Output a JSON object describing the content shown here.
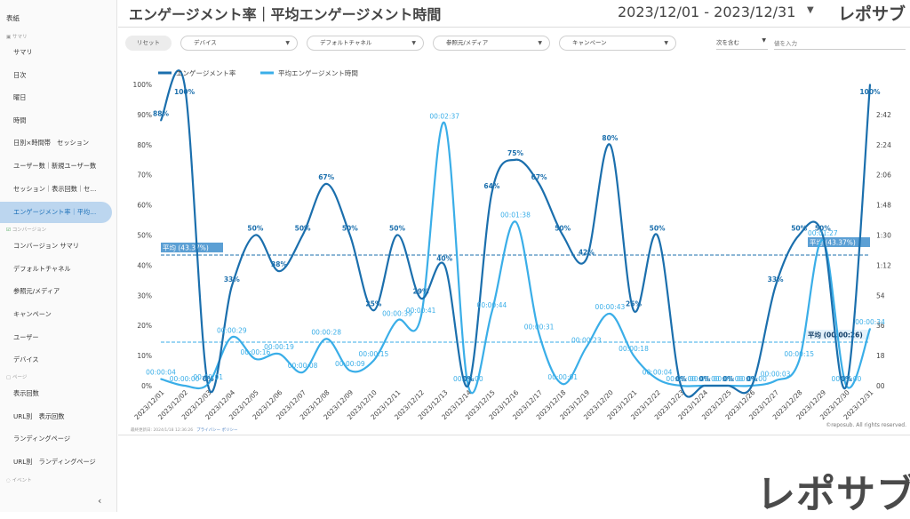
{
  "sidebar": {
    "top_label": "表紙",
    "sections": {
      "summary": "サマリ",
      "conversion": "コンバージョン",
      "page": "ページ",
      "event": "イベント"
    },
    "items": [
      "サマリ",
      "日次",
      "曜日",
      "時間",
      "日別×時間帯　セッション",
      "ユーザー数｜新規ユーザー数",
      "セッション｜表示回数｜セ…",
      "エンゲージメント率｜平均…",
      "コンバージョン サマリ",
      "デフォルトチャネル",
      "参照元/メディア",
      "キャンペーン",
      "ユーザー",
      "デバイス",
      "表示回数",
      "URL別　表示回数",
      "ランディングページ",
      "URL別　ランディングページ"
    ],
    "active_index": 7,
    "collapse_icon": "‹"
  },
  "header": {
    "title": "エンゲージメント率｜平均エンゲージメント時間",
    "date_range": "2023/12/01 - 2023/12/31",
    "logo": "レポサブ"
  },
  "filters": {
    "reset": "リセット",
    "device": "デバイス",
    "channel": "デフォルトチャネル",
    "source": "参照元/メディア",
    "campaign": "キャンペーン",
    "match": "次を含む",
    "value_placeholder": "値を入力"
  },
  "footer": {
    "updated": "最終更新日: 2024/1/18 12:36:26",
    "privacy": "プライバシー ポリシー",
    "copyright": "©reposub. All rights reserved."
  },
  "watermark": "レポサブ",
  "colors": {
    "rate": "#1b6fad",
    "time": "#3aaee8",
    "avg_rate_bg": "#5b9fd4"
  },
  "chart_data": {
    "type": "line",
    "categories": [
      "2023/12/01",
      "2023/12/02",
      "2023/12/03",
      "2023/12/04",
      "2023/12/05",
      "2023/12/06",
      "2023/12/07",
      "2023/12/08",
      "2023/12/09",
      "2023/12/10",
      "2023/12/11",
      "2023/12/12",
      "2023/12/13",
      "2023/12/14",
      "2023/12/15",
      "2023/12/16",
      "2023/12/17",
      "2023/12/18",
      "2023/12/19",
      "2023/12/20",
      "2023/12/21",
      "2023/12/22",
      "2023/12/23",
      "2023/12/24",
      "2023/12/25",
      "2023/12/26",
      "2023/12/27",
      "2023/12/28",
      "2023/12/29",
      "2023/12/30",
      "2023/12/31"
    ],
    "series": [
      {
        "name": "エンゲージメント率",
        "axis": "left",
        "values": [
          88,
          100,
          0,
          33,
          50,
          38,
          50,
          67,
          50,
          25,
          50,
          29,
          40,
          0,
          64,
          75,
          67,
          50,
          42,
          80,
          25,
          50,
          0,
          0,
          0,
          0,
          33,
          50,
          50,
          0,
          100
        ],
        "labels": [
          "88%",
          "100%",
          "0%",
          "33%",
          "50%",
          "38%",
          "50%",
          "67%",
          "50%",
          "25%",
          "50%",
          "29%",
          "40%",
          "0%",
          "64%",
          "75%",
          "67%",
          "50%",
          "42%",
          "80%",
          "25%",
          "50%",
          "0%",
          "0%",
          "0%",
          "0%",
          "33%",
          "50%",
          "50%",
          "0%",
          "100%"
        ]
      },
      {
        "name": "平均エンゲージメント時間",
        "axis": "right",
        "values": [
          4,
          0,
          1,
          29,
          16,
          19,
          8,
          28,
          9,
          15,
          39,
          41,
          157,
          0,
          44,
          98,
          31,
          1,
          23,
          43,
          18,
          4,
          0,
          0,
          0,
          0,
          3,
          15,
          87,
          0,
          34
        ],
        "labels": [
          "00:00:04",
          "00:00:00",
          "00:00:01",
          "00:00:29",
          "00:00:16",
          "00:00:19",
          "00:00:08",
          "00:00:28",
          "00:00:09",
          "00:00:15",
          "00:00:39",
          "00:00:41",
          "00:02:37",
          "00:00:00",
          "00:00:44",
          "00:01:38",
          "00:00:31",
          "00:00:01",
          "00:00:23",
          "00:00:43",
          "00:00:18",
          "00:00:04",
          "00:00:00",
          "00:00:00",
          "00:00:00",
          "00:00:00",
          "00:00:03",
          "00:00:15",
          "00:01:27",
          "00:00:00",
          "00:00:34"
        ]
      }
    ],
    "y_left": {
      "min": 0,
      "max": 100,
      "ticks": [
        "0%",
        "10%",
        "20%",
        "30%",
        "40%",
        "50%",
        "60%",
        "70%",
        "80%",
        "90%",
        "100%"
      ]
    },
    "y_right": {
      "min": 0,
      "max": 180,
      "ticks": [
        "00",
        "18",
        "36",
        "54",
        "1:12",
        "1:30",
        "1:48",
        "2:06",
        "2:24",
        "2:42"
      ]
    },
    "avg_rate": {
      "value": 43.37,
      "label": "平均 (43.37%)"
    },
    "avg_time": {
      "value": 26,
      "label": "平均 (00:00:26)"
    },
    "legend_position": "top-left",
    "grid": false
  }
}
